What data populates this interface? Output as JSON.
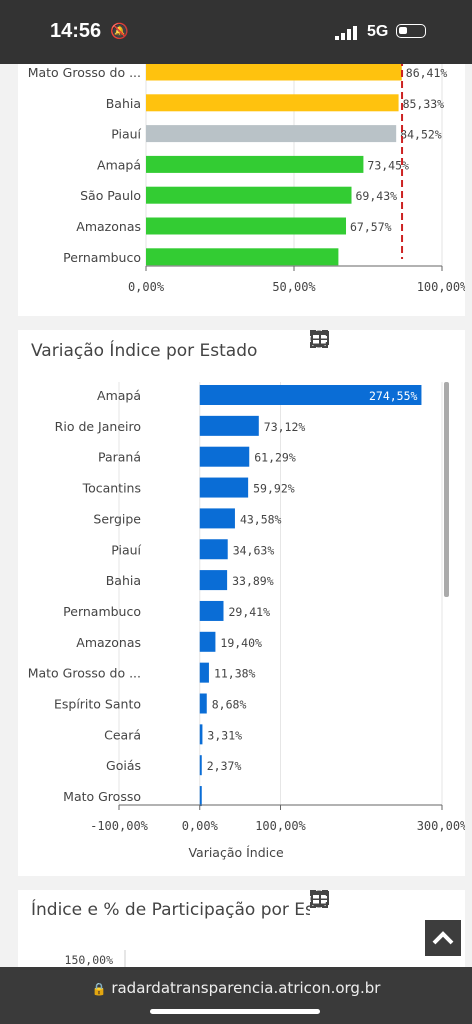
{
  "status_bar": {
    "time": "14:56",
    "network": "5G",
    "icons": [
      "bell-off-icon",
      "signal-icon",
      "battery-icon"
    ]
  },
  "toolbar": {
    "icons": [
      "image-icon",
      "close-circle-icon",
      "table-icon",
      "fullscreen-icon"
    ]
  },
  "browser": {
    "url": "radardatransparencia.atricon.org.br"
  },
  "scroll_top": {
    "icon": "chevron-up-icon"
  },
  "colors": {
    "above_ref": "#ffc20e",
    "ref": "#b9c2c7",
    "below_ref": "#33cc33",
    "variation": "#0a6dd6",
    "ref_line": "#cc2222"
  },
  "chart_data": [
    {
      "type": "bar",
      "orientation": "horizontal",
      "categories": [
        "Mato Grosso do ...",
        "Bahia",
        "Piauí",
        "Amapá",
        "São Paulo",
        "Amazonas",
        "Pernambuco"
      ],
      "values": [
        86.41,
        85.33,
        84.52,
        73.45,
        69.43,
        67.57,
        65.0
      ],
      "value_labels": [
        "86,41%",
        "85,33%",
        "84,52%",
        "73,45%",
        "69,43%",
        "67,57%",
        ""
      ],
      "colors": [
        "#ffc20e",
        "#ffc20e",
        "#b9c2c7",
        "#33cc33",
        "#33cc33",
        "#33cc33",
        "#33cc33"
      ],
      "reference_line": 86.5,
      "xlim": [
        0,
        100
      ],
      "xticks": [
        "0,00%",
        "50,00%",
        "100,00%"
      ]
    },
    {
      "type": "bar",
      "orientation": "horizontal",
      "title": "Variação Índice por Estado",
      "xlabel": "Variação Índice",
      "categories": [
        "Amapá",
        "Rio de Janeiro",
        "Paraná",
        "Tocantins",
        "Sergipe",
        "Piauí",
        "Bahia",
        "Pernambuco",
        "Amazonas",
        "Mato Grosso do ...",
        "Espírito Santo",
        "Ceará",
        "Goiás",
        "Mato Grosso"
      ],
      "values": [
        274.55,
        73.12,
        61.29,
        59.92,
        43.58,
        34.63,
        33.89,
        29.41,
        19.4,
        11.38,
        8.68,
        3.31,
        2.37,
        0.3
      ],
      "value_labels": [
        "274,55%",
        "73,12%",
        "61,29%",
        "59,92%",
        "43,58%",
        "34,63%",
        "33,89%",
        "29,41%",
        "19,40%",
        "11,38%",
        "8,68%",
        "3,31%",
        "2,37%",
        ""
      ],
      "xlim": [
        -100,
        300
      ],
      "xticks": [
        "-100,00%",
        "0,00%",
        "100,00%",
        "300,00%"
      ]
    },
    {
      "type": "bar",
      "title": "Índice e % de Participação por Estado",
      "yticks": [
        "150,00%"
      ]
    }
  ]
}
